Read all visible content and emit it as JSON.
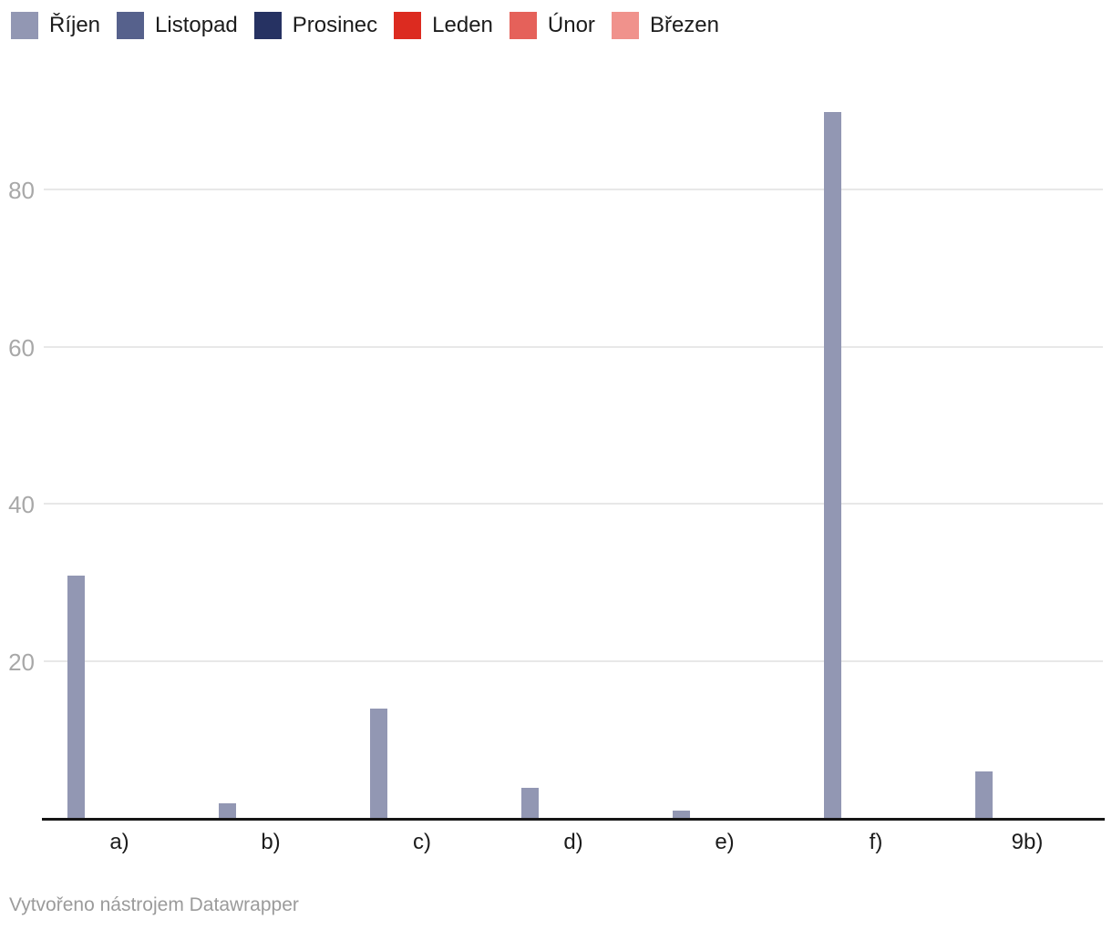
{
  "footer": {
    "credit": "Vytvořeno nástrojem Datawrapper"
  },
  "chart_data": {
    "type": "bar",
    "grouped": true,
    "title": "",
    "xlabel": "",
    "ylabel": "",
    "categories": [
      "a)",
      "b)",
      "c)",
      "d)",
      "e)",
      "f)",
      "9b)"
    ],
    "series": [
      {
        "name": "Říjen",
        "color": "#9297b3",
        "values": [
          31,
          2,
          14,
          4,
          1,
          90,
          6
        ]
      },
      {
        "name": "Listopad",
        "color": "#56618c",
        "values": [
          0,
          0,
          0,
          0,
          0,
          0,
          0
        ]
      },
      {
        "name": "Prosinec",
        "color": "#263262",
        "values": [
          0,
          0,
          0,
          0,
          0,
          0,
          0
        ]
      },
      {
        "name": "Leden",
        "color": "#dc2b20",
        "values": [
          0,
          0,
          0,
          0,
          0,
          0,
          0
        ]
      },
      {
        "name": "Únor",
        "color": "#e5615a",
        "values": [
          0,
          0,
          0,
          0,
          0,
          0,
          0
        ]
      },
      {
        "name": "Březen",
        "color": "#f0928c",
        "values": [
          0,
          0,
          0,
          0,
          0,
          0,
          0
        ]
      }
    ],
    "yticks": [
      20,
      40,
      60,
      80
    ],
    "ylim": [
      0,
      90
    ],
    "grid": true,
    "legend_position": "top",
    "axis_color": "#161616",
    "gridline_color": "#e8e8e8",
    "tick_label_color": "#a8a8a8"
  }
}
